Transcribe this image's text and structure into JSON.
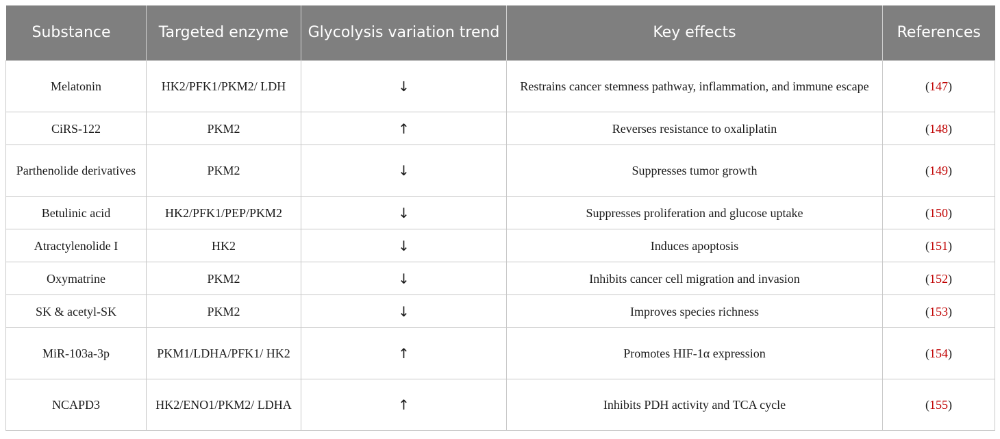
{
  "table": {
    "headers": {
      "substance": "Substance",
      "enzyme": "Targeted enzyme",
      "trend": "Glycolysis variation trend",
      "effects": "Key effects",
      "references": "References"
    },
    "rows": [
      {
        "substance": "Melatonin",
        "enzyme": "HK2/PFK1/PKM2/ LDH",
        "trend": "↓",
        "effects": "Restrains cancer stemness pathway, inflammation, and immune escape",
        "ref": "147"
      },
      {
        "substance": "CiRS-122",
        "enzyme": "PKM2",
        "trend": "↑",
        "effects": "Reverses resistance to oxaliplatin",
        "ref": "148"
      },
      {
        "substance": "Parthenolide derivatives",
        "enzyme": "PKM2",
        "trend": "↓",
        "effects": "Suppresses tumor growth",
        "ref": "149"
      },
      {
        "substance": "Betulinic acid",
        "enzyme": "HK2/PFK1/PEP/PKM2",
        "trend": "↓",
        "effects": "Suppresses proliferation and glucose uptake",
        "ref": "150"
      },
      {
        "substance": "Atractylenolide I",
        "enzyme": "HK2",
        "trend": "↓",
        "effects": "Induces apoptosis",
        "ref": "151"
      },
      {
        "substance": "Oxymatrine",
        "enzyme": "PKM2",
        "trend": "↓",
        "effects": "Inhibits cancer cell migration and invasion",
        "ref": "152"
      },
      {
        "substance": "SK & acetyl-SK",
        "enzyme": "PKM2",
        "trend": "↓",
        "effects": "Improves species richness",
        "ref": "153"
      },
      {
        "substance": "MiR-103a-3p",
        "enzyme": "PKM1/LDHA/PFK1/ HK2",
        "trend": "↑",
        "effects": "Promotes HIF-1α expression",
        "ref": "154"
      },
      {
        "substance": "NCAPD3",
        "enzyme": "HK2/ENO1/PKM2/ LDHA",
        "trend": "↑",
        "effects": "Inhibits PDH activity and TCA cycle",
        "ref": "155"
      }
    ],
    "ref_brackets": {
      "open": "(",
      "close": ")"
    }
  },
  "colors": {
    "header_bg": "#7f7f7f",
    "header_text": "#ffffff",
    "reference_link": "#c00000",
    "border": "#c8c8c8"
  }
}
